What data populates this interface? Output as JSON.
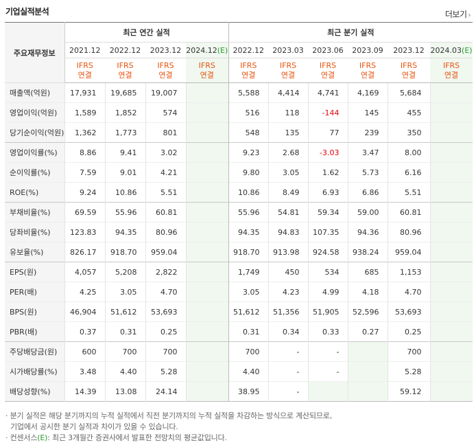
{
  "header": {
    "title": "기업실적분석",
    "more_label": "더보기"
  },
  "table": {
    "row_header_label": "주요재무정보",
    "group_annual": "최근 연간 실적",
    "group_quarter": "최근 분기 실적",
    "periods": [
      "2021.12",
      "2022.12",
      "2023.12",
      "2024.12",
      "2022.12",
      "2023.03",
      "2023.06",
      "2023.09",
      "2023.12",
      "2024.03"
    ],
    "estimate_mark": "(E)",
    "ifrs_label": "IFRS",
    "consol_label": "연결",
    "rows": [
      {
        "label": "매출액(억원)",
        "values": [
          "17,931",
          "19,685",
          "19,007",
          "",
          "5,588",
          "4,414",
          "4,741",
          "4,169",
          "5,684",
          ""
        ]
      },
      {
        "label": "영업이익(억원)",
        "values": [
          "1,589",
          "1,852",
          "574",
          "",
          "516",
          "118",
          "-144",
          "145",
          "455",
          ""
        ]
      },
      {
        "label": "당기순이익(억원)",
        "values": [
          "1,362",
          "1,773",
          "801",
          "",
          "548",
          "135",
          "77",
          "239",
          "350",
          ""
        ]
      },
      {
        "label": "영업이익률(%)",
        "values": [
          "8.86",
          "9.41",
          "3.02",
          "",
          "9.23",
          "2.68",
          "-3.03",
          "3.47",
          "8.00",
          ""
        ]
      },
      {
        "label": "순이익률(%)",
        "values": [
          "7.59",
          "9.01",
          "4.21",
          "",
          "9.80",
          "3.05",
          "1.62",
          "5.73",
          "6.16",
          ""
        ]
      },
      {
        "label": "ROE(%)",
        "values": [
          "9.24",
          "10.86",
          "5.51",
          "",
          "10.86",
          "8.49",
          "6.93",
          "6.86",
          "5.51",
          ""
        ]
      },
      {
        "label": "부채비율(%)",
        "values": [
          "69.59",
          "55.96",
          "60.81",
          "",
          "55.96",
          "54.81",
          "59.34",
          "59.00",
          "60.81",
          ""
        ]
      },
      {
        "label": "당좌비율(%)",
        "values": [
          "123.83",
          "94.35",
          "80.96",
          "",
          "94.35",
          "94.83",
          "107.35",
          "94.36",
          "80.96",
          ""
        ]
      },
      {
        "label": "유보율(%)",
        "values": [
          "826.17",
          "918.70",
          "959.04",
          "",
          "918.70",
          "913.98",
          "924.58",
          "938.24",
          "959.04",
          ""
        ]
      },
      {
        "label": "EPS(원)",
        "values": [
          "4,057",
          "5,208",
          "2,822",
          "",
          "1,749",
          "450",
          "534",
          "685",
          "1,153",
          ""
        ]
      },
      {
        "label": "PER(배)",
        "values": [
          "4.25",
          "3.05",
          "4.70",
          "",
          "3.05",
          "4.23",
          "4.99",
          "4.18",
          "4.70",
          ""
        ]
      },
      {
        "label": "BPS(원)",
        "values": [
          "46,904",
          "51,612",
          "53,693",
          "",
          "51,612",
          "51,356",
          "51,905",
          "52,596",
          "53,693",
          ""
        ]
      },
      {
        "label": "PBR(배)",
        "values": [
          "0.37",
          "0.31",
          "0.25",
          "",
          "0.31",
          "0.34",
          "0.33",
          "0.27",
          "0.25",
          ""
        ]
      },
      {
        "label": "주당배당금(원)",
        "values": [
          "600",
          "700",
          "700",
          "",
          "700",
          "-",
          "-",
          "",
          "700",
          ""
        ]
      },
      {
        "label": "시가배당률(%)",
        "values": [
          "3.48",
          "4.40",
          "5.28",
          "",
          "4.40",
          "-",
          "-",
          "",
          "5.28",
          ""
        ]
      },
      {
        "label": "배당성향(%)",
        "values": [
          "14.39",
          "13.08",
          "24.14",
          "",
          "38.95",
          "-",
          "",
          "",
          "59.12",
          ""
        ]
      }
    ]
  },
  "notes": {
    "line1": "· 분기 실적은 해당 분기까지의 누적 실적에서 직전 분기까지의 누적 실적을 차감하는 방식으로 계산되므로,",
    "line2": "기업에서 공시한 분기 실적과 차이가 있을 수 있습니다.",
    "line3_prefix": "· 컨센서스",
    "line3_suffix": ": 최근 3개월간 증권사에서 발표한 전망치의 평균값입니다."
  },
  "colors": {
    "ifrs": "#e8530e",
    "estimate": "#2a9a2a",
    "estimate_bg": "#f0f8f0",
    "negative": "#e8000b"
  }
}
